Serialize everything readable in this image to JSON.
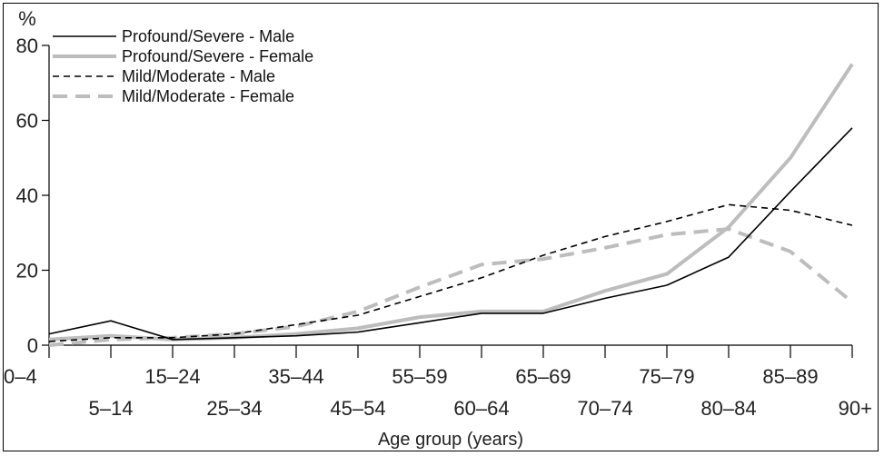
{
  "chart_data": {
    "type": "line",
    "title": "",
    "xlabel": "Age group (years)",
    "ylabel": "%",
    "ylim": [
      0,
      80
    ],
    "yticks": [
      0,
      20,
      40,
      60,
      80
    ],
    "grid": false,
    "legend_position": "top-left",
    "categories": [
      "0–4",
      "5–14",
      "15–24",
      "25–34",
      "35–44",
      "45–54",
      "55–59",
      "60–64",
      "65–69",
      "70–74",
      "75–79",
      "80–84",
      "85–89",
      "90+"
    ],
    "series": [
      {
        "name": "Profound/Severe - Male",
        "color": "#000000",
        "style": "solid-thin",
        "values": [
          3,
          6.5,
          1.5,
          2,
          2.5,
          3.5,
          6,
          8.5,
          8.5,
          12.5,
          16,
          23.5,
          41,
          58
        ]
      },
      {
        "name": "Profound/Severe - Female",
        "color": "#bdbdbd",
        "style": "solid-thick",
        "values": [
          1.5,
          2.5,
          1.5,
          2,
          3,
          4.5,
          7.5,
          9,
          9,
          14.5,
          19,
          31.5,
          50,
          75
        ]
      },
      {
        "name": "Mild/Moderate - Male",
        "color": "#000000",
        "style": "dashed-thin",
        "values": [
          1,
          2,
          2,
          3,
          5.5,
          8,
          13,
          18,
          24,
          29,
          33,
          37.5,
          36,
          32
        ]
      },
      {
        "name": "Mild/Moderate - Female",
        "color": "#bdbdbd",
        "style": "dashed-thick",
        "values": [
          0,
          1.5,
          2,
          3,
          5,
          9,
          15.5,
          21.5,
          23,
          26,
          29.5,
          31,
          25,
          11.5
        ]
      }
    ]
  }
}
